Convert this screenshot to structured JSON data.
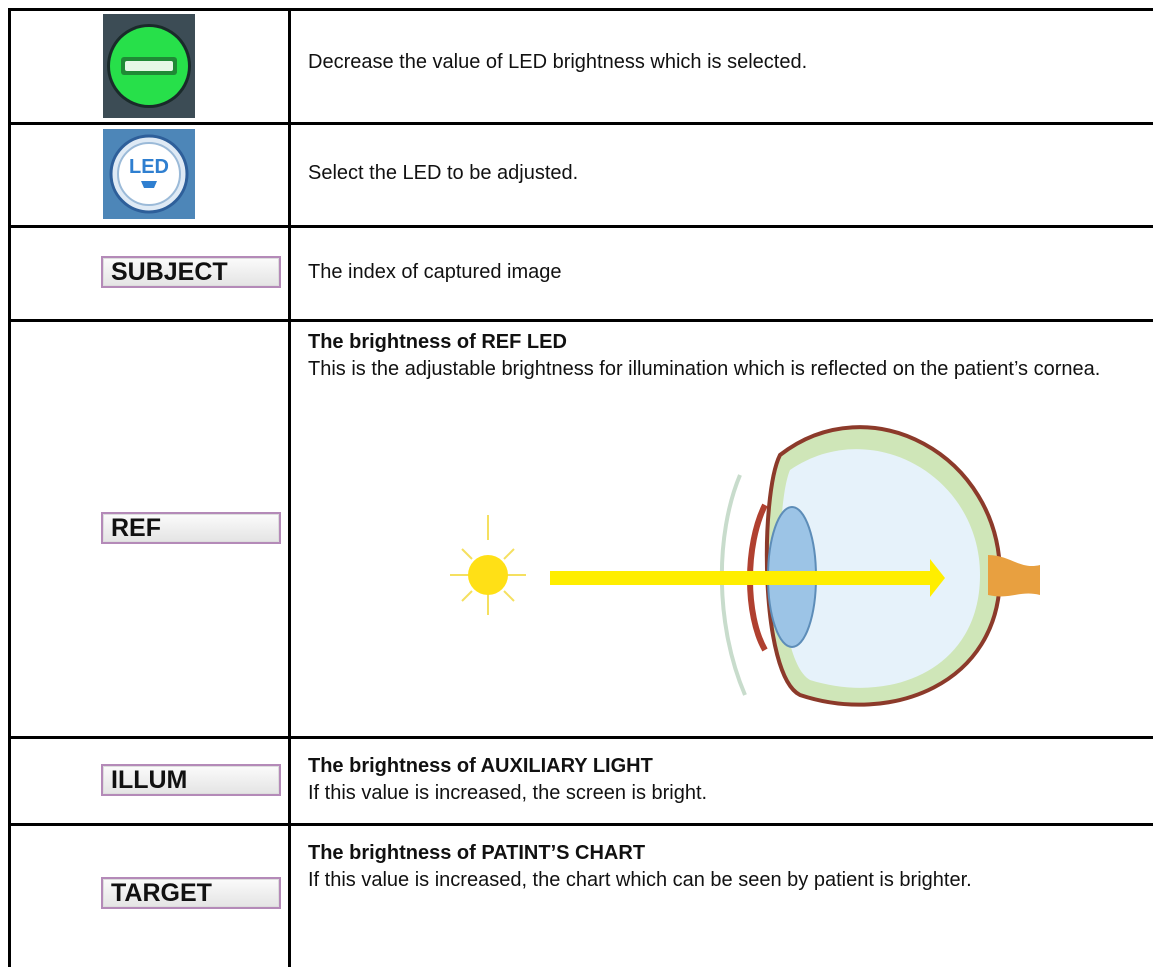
{
  "rows": [
    {
      "description": "Decrease the value of LED brightness which is selected."
    },
    {
      "icon_text": "LED",
      "description": "Select the LED to be adjusted."
    },
    {
      "icon_text": "SUBJECT",
      "description": "The index of captured image"
    },
    {
      "icon_text": "REF",
      "heading": "The brightness of REF LED",
      "description": "This is the adjustable brightness for illumination which is reflected on the patient’s cornea."
    },
    {
      "icon_text": "ILLUM",
      "heading": "The brightness of AUXILIARY LIGHT",
      "description": "If this value is increased, the screen is bright."
    },
    {
      "icon_text": "TARGET",
      "heading": "The brightness of PATINT’S CHART",
      "description": "If this value is increased, the chart which can be seen by patient is brighter."
    }
  ]
}
